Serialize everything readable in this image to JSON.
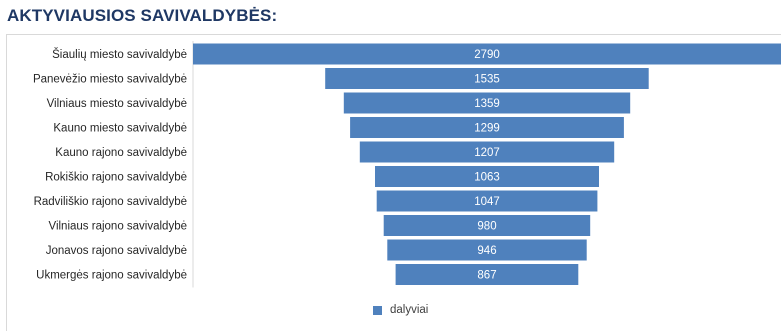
{
  "title": "AKTYVIAUSIOS SAVIVALDYBĖS:",
  "chart_data": {
    "type": "bar",
    "orientation": "horizontal",
    "layout": "funnel-centered",
    "categories": [
      "Šiaulių miesto savivaldybė",
      "Panevėžio miesto savivaldybė",
      "Vilniaus miesto savivaldybė",
      "Kauno miesto savivaldybė",
      "Kauno rajono savivaldybė",
      "Rokiškio rajono savivaldybė",
      "Radviliškio rajono savivaldybė",
      "Vilniaus rajono savivaldybė",
      "Jonavos rajono savivaldybė",
      "Ukmergės rajono savivaldybė"
    ],
    "series": [
      {
        "name": "dalyviai",
        "values": [
          2790,
          1535,
          1359,
          1299,
          1207,
          1063,
          1047,
          980,
          946,
          867
        ],
        "color": "#4f81bd"
      }
    ],
    "data_labels": true,
    "legend": {
      "position": "bottom",
      "entries": [
        "dalyviai"
      ]
    },
    "grid": false
  }
}
